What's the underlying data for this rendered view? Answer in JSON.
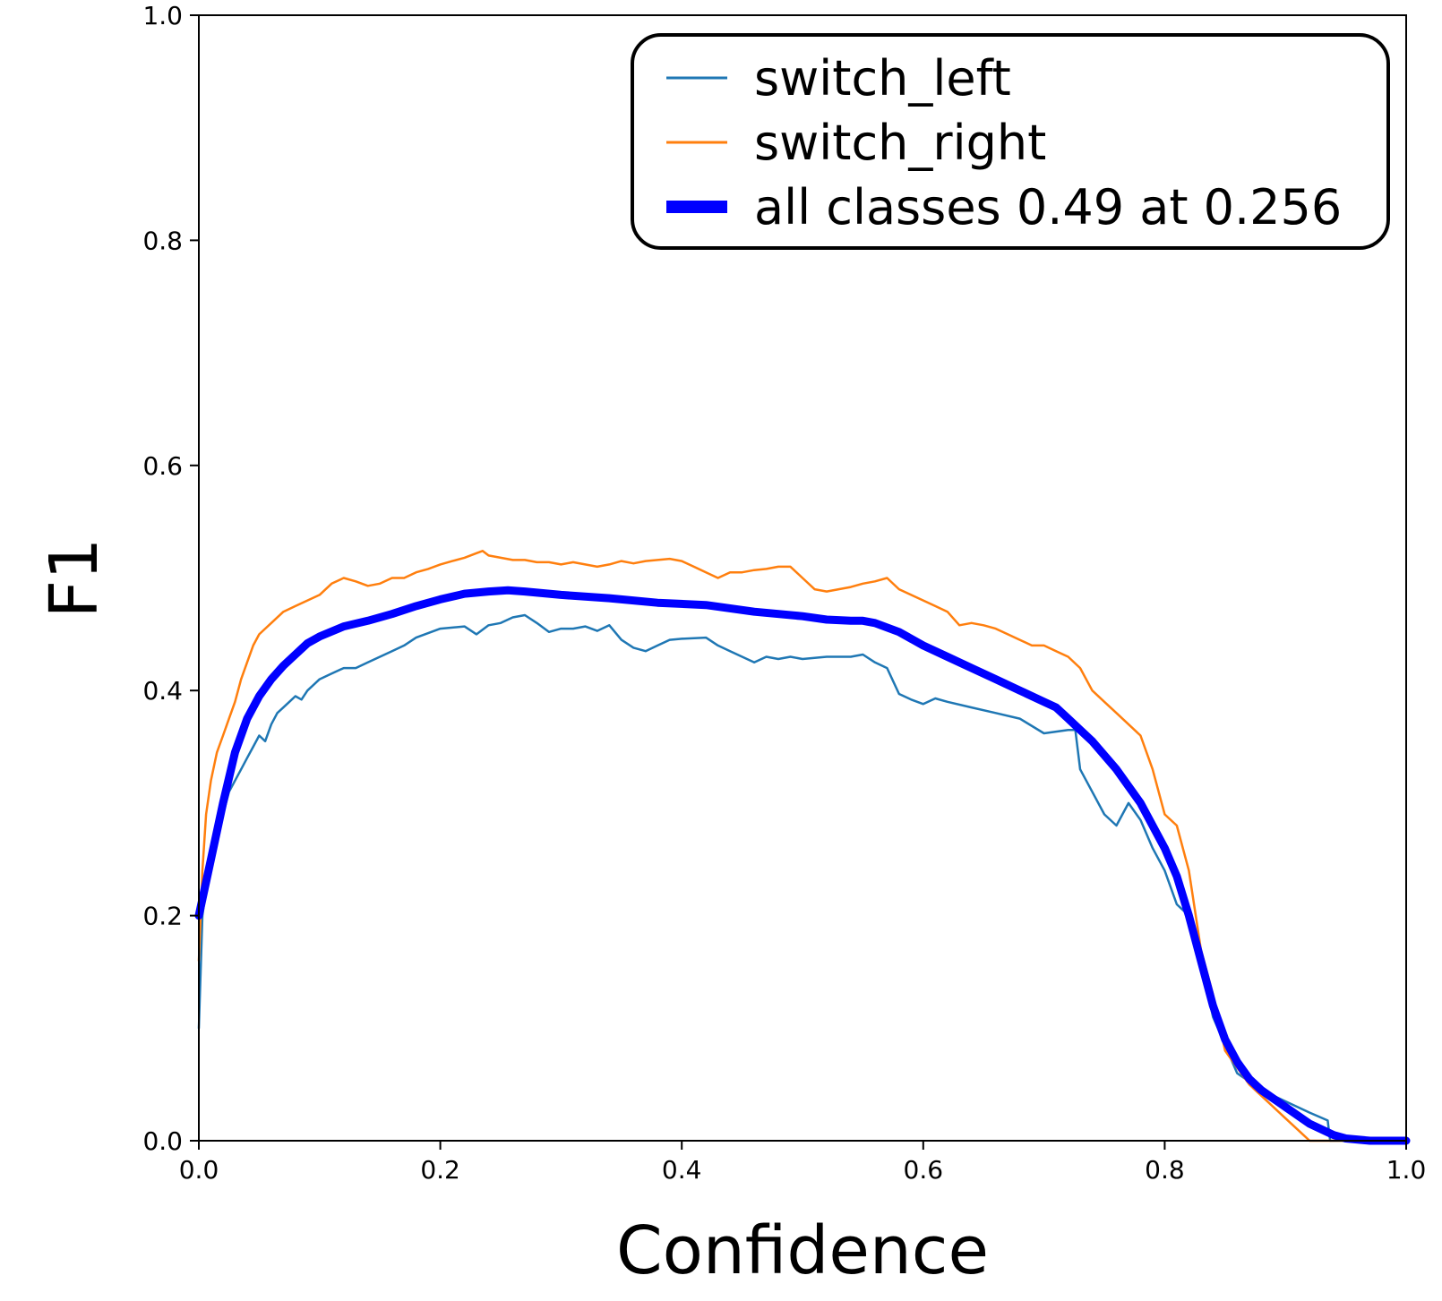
{
  "chart_data": {
    "type": "line",
    "xlabel": "Confidence",
    "ylabel": "F1",
    "xlim": [
      0,
      1
    ],
    "ylim": [
      0,
      1
    ],
    "xticks": [
      "0.0",
      "0.2",
      "0.4",
      "0.6",
      "0.8",
      "1.0"
    ],
    "yticks": [
      "0.0",
      "0.2",
      "0.4",
      "0.6",
      "0.8",
      "1.0"
    ],
    "grid": false,
    "legend_position": "top-right",
    "series": [
      {
        "name": "switch_left",
        "color": "#1f77b4",
        "x": [
          0.0,
          0.003,
          0.008,
          0.015,
          0.02,
          0.025,
          0.03,
          0.035,
          0.04,
          0.045,
          0.05,
          0.055,
          0.06,
          0.065,
          0.07,
          0.075,
          0.08,
          0.085,
          0.09,
          0.1,
          0.11,
          0.12,
          0.13,
          0.14,
          0.15,
          0.16,
          0.17,
          0.18,
          0.2,
          0.22,
          0.23,
          0.24,
          0.25,
          0.26,
          0.27,
          0.28,
          0.29,
          0.3,
          0.31,
          0.32,
          0.33,
          0.34,
          0.35,
          0.36,
          0.37,
          0.38,
          0.39,
          0.4,
          0.42,
          0.43,
          0.44,
          0.45,
          0.46,
          0.47,
          0.48,
          0.49,
          0.5,
          0.52,
          0.54,
          0.55,
          0.56,
          0.57,
          0.58,
          0.59,
          0.6,
          0.61,
          0.62,
          0.64,
          0.66,
          0.68,
          0.7,
          0.72,
          0.726,
          0.73,
          0.74,
          0.75,
          0.76,
          0.77,
          0.78,
          0.79,
          0.8,
          0.81,
          0.82,
          0.83,
          0.84,
          0.86,
          0.88,
          0.9,
          0.92,
          0.935,
          0.937,
          0.95,
          0.97,
          1.0
        ],
        "values": [
          0.1,
          0.2,
          0.24,
          0.27,
          0.29,
          0.31,
          0.32,
          0.33,
          0.34,
          0.35,
          0.36,
          0.355,
          0.37,
          0.38,
          0.385,
          0.39,
          0.395,
          0.392,
          0.4,
          0.41,
          0.415,
          0.42,
          0.42,
          0.425,
          0.43,
          0.435,
          0.44,
          0.447,
          0.455,
          0.457,
          0.45,
          0.458,
          0.46,
          0.465,
          0.467,
          0.46,
          0.452,
          0.455,
          0.455,
          0.457,
          0.453,
          0.458,
          0.445,
          0.438,
          0.435,
          0.44,
          0.445,
          0.446,
          0.447,
          0.44,
          0.435,
          0.43,
          0.425,
          0.43,
          0.428,
          0.43,
          0.428,
          0.43,
          0.43,
          0.432,
          0.425,
          0.42,
          0.397,
          0.392,
          0.388,
          0.393,
          0.39,
          0.385,
          0.38,
          0.375,
          0.362,
          0.365,
          0.365,
          0.33,
          0.31,
          0.29,
          0.28,
          0.3,
          0.285,
          0.26,
          0.24,
          0.21,
          0.2,
          0.16,
          0.11,
          0.06,
          0.045,
          0.035,
          0.025,
          0.018,
          0.0,
          0.0,
          0.0,
          0.0
        ]
      },
      {
        "name": "switch_right",
        "color": "#ff7f0e",
        "x": [
          0.0,
          0.003,
          0.006,
          0.01,
          0.015,
          0.02,
          0.025,
          0.03,
          0.035,
          0.04,
          0.045,
          0.05,
          0.055,
          0.06,
          0.07,
          0.08,
          0.09,
          0.1,
          0.11,
          0.12,
          0.13,
          0.14,
          0.15,
          0.16,
          0.17,
          0.18,
          0.19,
          0.2,
          0.21,
          0.22,
          0.23,
          0.235,
          0.24,
          0.25,
          0.26,
          0.27,
          0.28,
          0.29,
          0.3,
          0.31,
          0.32,
          0.33,
          0.34,
          0.35,
          0.36,
          0.37,
          0.38,
          0.39,
          0.4,
          0.41,
          0.42,
          0.43,
          0.44,
          0.45,
          0.46,
          0.47,
          0.48,
          0.49,
          0.5,
          0.51,
          0.52,
          0.53,
          0.54,
          0.55,
          0.56,
          0.57,
          0.58,
          0.59,
          0.6,
          0.61,
          0.62,
          0.63,
          0.64,
          0.65,
          0.66,
          0.67,
          0.68,
          0.69,
          0.7,
          0.71,
          0.72,
          0.73,
          0.74,
          0.75,
          0.76,
          0.77,
          0.78,
          0.79,
          0.8,
          0.81,
          0.82,
          0.83,
          0.84,
          0.85,
          0.86,
          0.87,
          0.88,
          0.9,
          0.91,
          0.915,
          0.92,
          0.95,
          1.0
        ],
        "values": [
          0.16,
          0.24,
          0.29,
          0.32,
          0.345,
          0.36,
          0.375,
          0.39,
          0.41,
          0.425,
          0.44,
          0.45,
          0.455,
          0.46,
          0.47,
          0.475,
          0.48,
          0.485,
          0.495,
          0.5,
          0.497,
          0.493,
          0.495,
          0.5,
          0.5,
          0.505,
          0.508,
          0.512,
          0.515,
          0.518,
          0.522,
          0.524,
          0.52,
          0.518,
          0.516,
          0.516,
          0.514,
          0.514,
          0.512,
          0.514,
          0.512,
          0.51,
          0.512,
          0.515,
          0.513,
          0.515,
          0.516,
          0.517,
          0.515,
          0.51,
          0.505,
          0.5,
          0.505,
          0.505,
          0.507,
          0.508,
          0.51,
          0.51,
          0.5,
          0.49,
          0.488,
          0.49,
          0.492,
          0.495,
          0.497,
          0.5,
          0.49,
          0.485,
          0.48,
          0.475,
          0.47,
          0.458,
          0.46,
          0.458,
          0.455,
          0.45,
          0.445,
          0.44,
          0.44,
          0.435,
          0.43,
          0.42,
          0.4,
          0.39,
          0.38,
          0.37,
          0.36,
          0.33,
          0.29,
          0.28,
          0.24,
          0.17,
          0.13,
          0.08,
          0.065,
          0.05,
          0.04,
          0.02,
          0.01,
          0.005,
          0.0,
          0.0,
          0.0
        ]
      },
      {
        "name": "all classes 0.49 at 0.256",
        "color": "#0000ff",
        "highlight": true,
        "x": [
          0.0,
          0.01,
          0.02,
          0.03,
          0.04,
          0.05,
          0.06,
          0.07,
          0.08,
          0.09,
          0.1,
          0.12,
          0.14,
          0.16,
          0.18,
          0.2,
          0.22,
          0.24,
          0.256,
          0.27,
          0.3,
          0.34,
          0.38,
          0.42,
          0.46,
          0.5,
          0.52,
          0.54,
          0.55,
          0.56,
          0.58,
          0.6,
          0.62,
          0.64,
          0.66,
          0.68,
          0.7,
          0.71,
          0.72,
          0.73,
          0.74,
          0.76,
          0.78,
          0.8,
          0.81,
          0.82,
          0.83,
          0.84,
          0.85,
          0.86,
          0.87,
          0.88,
          0.9,
          0.92,
          0.94,
          0.95,
          0.97,
          1.0
        ],
        "values": [
          0.2,
          0.25,
          0.3,
          0.345,
          0.375,
          0.395,
          0.41,
          0.422,
          0.432,
          0.442,
          0.448,
          0.457,
          0.462,
          0.468,
          0.475,
          0.481,
          0.486,
          0.488,
          0.489,
          0.488,
          0.485,
          0.482,
          0.478,
          0.476,
          0.47,
          0.466,
          0.463,
          0.462,
          0.462,
          0.46,
          0.452,
          0.44,
          0.43,
          0.42,
          0.41,
          0.4,
          0.39,
          0.385,
          0.375,
          0.365,
          0.355,
          0.33,
          0.3,
          0.26,
          0.235,
          0.2,
          0.16,
          0.12,
          0.09,
          0.07,
          0.055,
          0.045,
          0.03,
          0.015,
          0.005,
          0.002,
          0.0,
          0.0
        ]
      }
    ]
  }
}
